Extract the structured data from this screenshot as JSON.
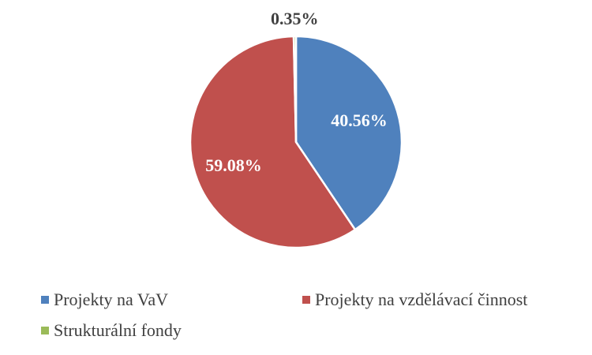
{
  "chart_data": {
    "type": "pie",
    "slices": [
      {
        "name": "Projekty na VaV",
        "value": 40.56,
        "label": "40.56%",
        "color": "#4F81BD",
        "label_color": "#ffffff"
      },
      {
        "name": "Projekty na vzdělávací činnost",
        "value": 59.08,
        "label": "59.08%",
        "color": "#C0504D",
        "label_color": "#ffffff"
      },
      {
        "name": "Strukturální fondy",
        "value": 0.35,
        "label": "0.35%",
        "color": "#9BBB59",
        "label_color": "#404040"
      }
    ],
    "legend": {
      "position": "bottom",
      "entries": [
        "Projekty na VaV",
        "Projekty na vzdělávací činnost",
        "Strukturální fondy"
      ]
    }
  }
}
